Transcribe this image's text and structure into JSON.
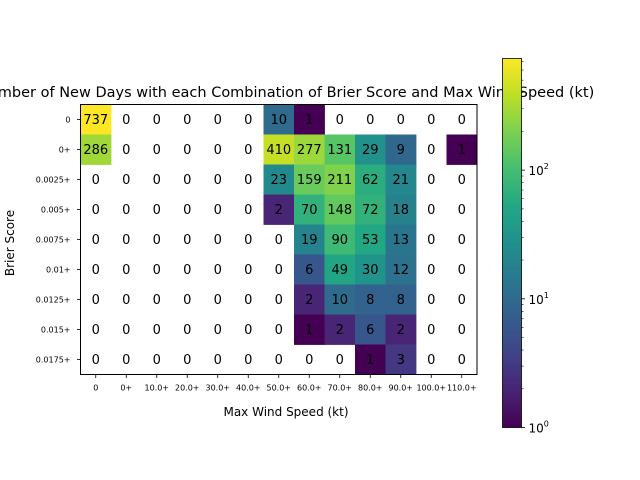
{
  "chart_data": {
    "type": "heatmap",
    "title": "Number of New Days with each Combination of Brier Score and Max Wind Speed (kt)",
    "xlabel": "Max Wind Speed (kt)",
    "ylabel": "Brier Score",
    "x_categories": [
      "0",
      "0+",
      "10.0+",
      "20.0+",
      "30.0+",
      "40.0+",
      "50.0+",
      "60.0+",
      "70.0+",
      "80.0+",
      "90.0+",
      "100.0+",
      "110.0+"
    ],
    "y_categories": [
      "0",
      "0+",
      "0.0025+",
      "0.005+",
      "0.0075+",
      "0.01+",
      "0.0125+",
      "0.015+",
      "0.0175+"
    ],
    "values": [
      [
        737,
        0,
        0,
        0,
        0,
        0,
        10,
        1,
        0,
        0,
        0,
        0,
        0
      ],
      [
        286,
        0,
        0,
        0,
        0,
        0,
        410,
        277,
        131,
        29,
        9,
        0,
        1
      ],
      [
        0,
        0,
        0,
        0,
        0,
        0,
        23,
        159,
        211,
        62,
        21,
        0,
        0
      ],
      [
        0,
        0,
        0,
        0,
        0,
        0,
        2,
        70,
        148,
        72,
        18,
        0,
        0
      ],
      [
        0,
        0,
        0,
        0,
        0,
        0,
        0,
        19,
        90,
        53,
        13,
        0,
        0
      ],
      [
        0,
        0,
        0,
        0,
        0,
        0,
        0,
        6,
        49,
        30,
        12,
        0,
        0
      ],
      [
        0,
        0,
        0,
        0,
        0,
        0,
        0,
        2,
        10,
        8,
        8,
        0,
        0
      ],
      [
        0,
        0,
        0,
        0,
        0,
        0,
        0,
        1,
        2,
        6,
        2,
        0,
        0
      ],
      [
        0,
        0,
        0,
        0,
        0,
        0,
        0,
        0,
        0,
        1,
        3,
        0,
        0
      ]
    ],
    "colorscale": "viridis",
    "color_scale_type": "log",
    "color_range": [
      1,
      737
    ],
    "zero_cells": "uncolored",
    "colorbar": {
      "ticks": [
        {
          "base": "10",
          "exp": "0",
          "value": 1
        },
        {
          "base": "10",
          "exp": "1",
          "value": 10
        },
        {
          "base": "10",
          "exp": "2",
          "value": 100
        }
      ]
    }
  }
}
